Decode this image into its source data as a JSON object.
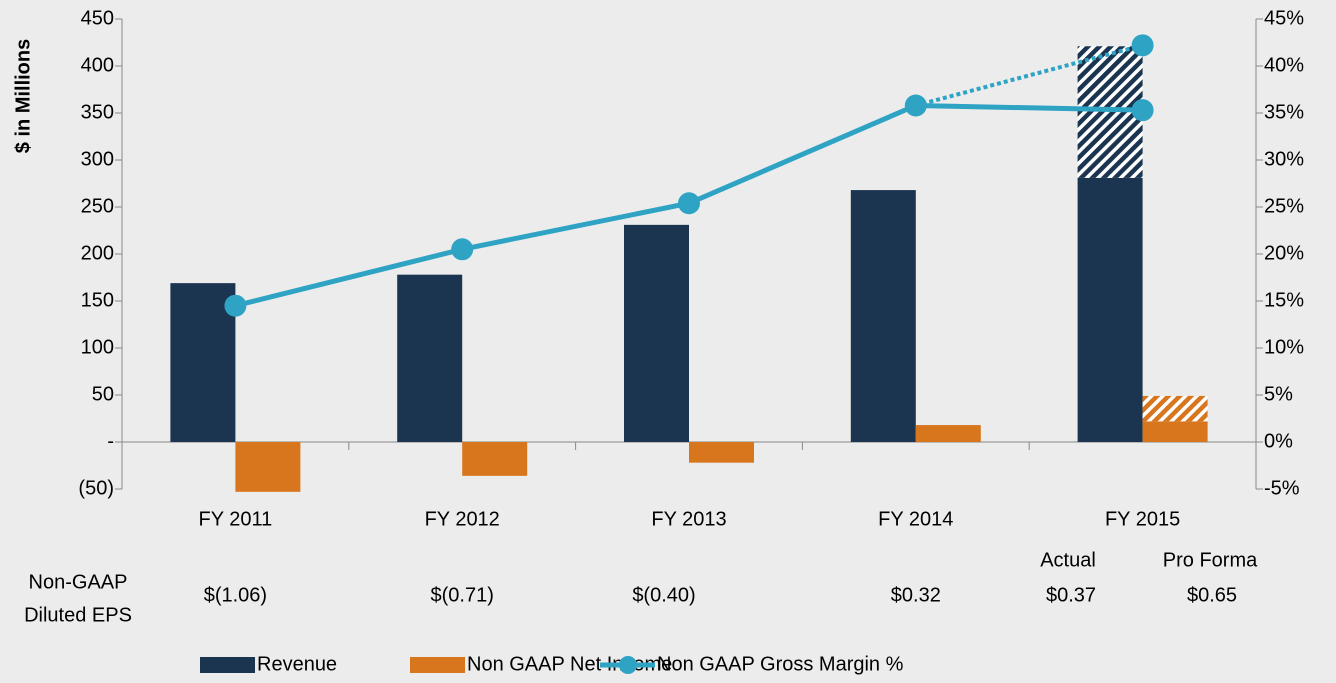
{
  "chart_data": {
    "type": "bar",
    "y_axis_label": "$ in Millions",
    "categories": [
      "FY 2011",
      "FY 2012",
      "FY 2013",
      "FY 2014",
      "FY 2015"
    ],
    "series": [
      {
        "name": "Revenue",
        "color": "#1b3550",
        "values": [
          169,
          178,
          231,
          268,
          281
        ]
      },
      {
        "name": "Non GAAP Net Income",
        "color": "#d8761e",
        "values": [
          -53,
          -36,
          -22,
          18,
          22
        ]
      },
      {
        "name": "Non GAAP Gross Margin %",
        "color": "#2ea3c4",
        "type": "line",
        "axis": "y2",
        "values": [
          14.5,
          20.5,
          25.4,
          35.8,
          35.3
        ]
      }
    ],
    "pro_forma": [
      {
        "stack_on": 0,
        "color": "#1b3550",
        "hatched": true,
        "values": [
          null,
          null,
          null,
          null,
          140
        ]
      },
      {
        "stack_on": 1,
        "color": "#d8761e",
        "hatched": true,
        "values": [
          null,
          null,
          null,
          null,
          27
        ]
      },
      {
        "type": "line",
        "axis": "y2",
        "dotted": true,
        "color": "#2ea3c4",
        "values": [
          null,
          null,
          null,
          35.8,
          42.2
        ]
      }
    ],
    "ylim": [
      -50,
      450
    ],
    "yticks": [
      {
        "value": -50,
        "label": "(50)"
      },
      {
        "value": 0,
        "label": "-"
      },
      50,
      100,
      150,
      200,
      250,
      300,
      350,
      400,
      450
    ],
    "y2lim": [
      -5,
      45
    ],
    "y2ticks": [
      {
        "value": -5,
        "label": "-5%"
      },
      {
        "value": 0,
        "label": "0%"
      },
      {
        "value": 5,
        "label": "5%"
      },
      {
        "value": 10,
        "label": "10%"
      },
      {
        "value": 15,
        "label": "15%"
      },
      {
        "value": 20,
        "label": "20%"
      },
      {
        "value": 25,
        "label": "25%"
      },
      {
        "value": 30,
        "label": "30%"
      },
      {
        "value": 35,
        "label": "35%"
      },
      {
        "value": 40,
        "label": "40%"
      },
      {
        "value": 45,
        "label": "45%"
      }
    ],
    "eps": {
      "label_lines": [
        "Non-GAAP",
        "Diluted EPS"
      ],
      "sub_labels": [
        "Actual",
        "Pro Forma"
      ],
      "values": [
        -1.06,
        -0.71,
        -0.4,
        0.32,
        0.37,
        0.65
      ],
      "value_labels": [
        "$(1.06)",
        "$(0.71)",
        "$(0.40)",
        "$0.32",
        "$0.37",
        "$0.65"
      ]
    }
  }
}
